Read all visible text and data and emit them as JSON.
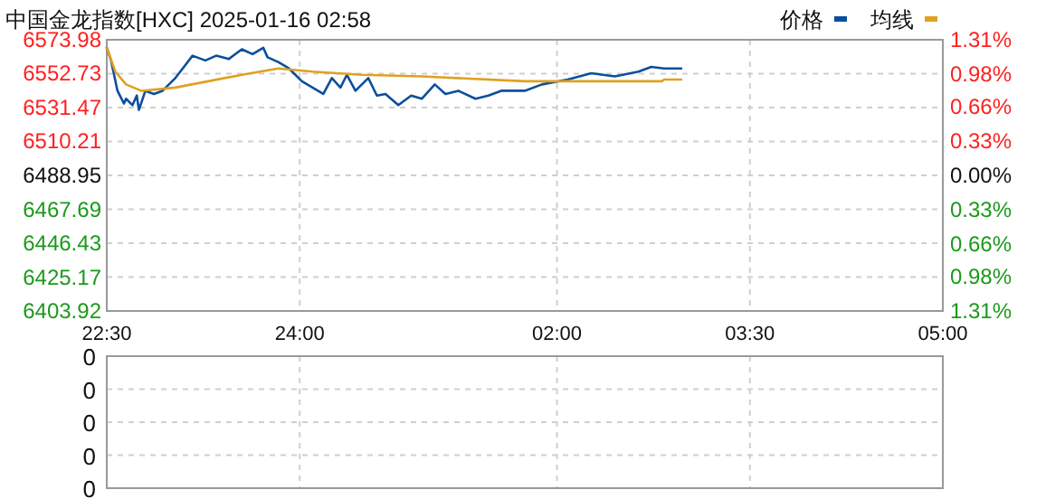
{
  "chart_data": [
    {
      "type": "line",
      "title": "中国金龙指数[HXC]  2025-01-16 02:58",
      "xlim": [
        "2025-01-15T22:30",
        "2025-01-16T05:00"
      ],
      "xticks": [
        {
          "value": "2025-01-15T22:30",
          "label": "22:30"
        },
        {
          "value": "2025-01-16T00:00",
          "label": "24:00"
        },
        {
          "value": "2025-01-16T02:00",
          "label": "02:00"
        },
        {
          "value": "2025-01-16T03:30",
          "label": "03:30"
        },
        {
          "value": "2025-01-16T05:00",
          "label": "05:00"
        }
      ],
      "ylim": [
        6403.92,
        6573.98
      ],
      "yticks": [
        6403.92,
        6425.17,
        6446.43,
        6467.69,
        6488.95,
        6510.21,
        6531.47,
        6552.73,
        6573.98
      ],
      "y2lim": [
        -1.31,
        1.31
      ],
      "y2ticks": [
        {
          "value": -1.31,
          "label": "1.31%"
        },
        {
          "value": -0.98,
          "label": "0.98%"
        },
        {
          "value": -0.66,
          "label": "0.66%"
        },
        {
          "value": -0.33,
          "label": "0.33%"
        },
        {
          "value": 0,
          "label": "0.00%"
        },
        {
          "value": 0.33,
          "label": "0.33%"
        },
        {
          "value": 0.66,
          "label": "0.66%"
        },
        {
          "value": 0.98,
          "label": "0.98%"
        },
        {
          "value": 1.31,
          "label": "1.31%"
        }
      ],
      "grid": true,
      "legend": "top right",
      "line_style": "solid",
      "series": [
        {
          "name": "价格",
          "color": "#0b4f9c",
          "x": [
            "2025-01-15T22:30",
            "2025-01-15T22:32",
            "2025-01-15T22:35",
            "2025-01-15T22:38",
            "2025-01-15T22:39",
            "2025-01-15T22:42",
            "2025-01-15T22:44",
            "2025-01-15T22:45",
            "2025-01-15T22:48",
            "2025-01-15T22:52",
            "2025-01-15T22:56",
            "2025-01-15T23:02",
            "2025-01-15T23:06",
            "2025-01-15T23:10",
            "2025-01-15T23:16",
            "2025-01-15T23:21",
            "2025-01-15T23:27",
            "2025-01-15T23:33",
            "2025-01-15T23:38",
            "2025-01-15T23:43",
            "2025-01-15T23:45",
            "2025-01-15T23:50",
            "2025-01-15T23:55",
            "2025-01-16T00:01",
            "2025-01-16T00:06",
            "2025-01-16T00:11",
            "2025-01-16T00:15",
            "2025-01-16T00:19",
            "2025-01-16T00:22",
            "2025-01-16T00:26",
            "2025-01-16T00:32",
            "2025-01-16T00:36",
            "2025-01-16T00:40",
            "2025-01-16T00:46",
            "2025-01-16T00:52",
            "2025-01-16T00:57",
            "2025-01-16T01:03",
            "2025-01-16T01:08",
            "2025-01-16T01:14",
            "2025-01-16T01:22",
            "2025-01-16T01:28",
            "2025-01-16T01:34",
            "2025-01-16T01:39",
            "2025-01-16T01:45",
            "2025-01-16T01:53",
            "2025-01-16T02:05",
            "2025-01-16T02:16",
            "2025-01-16T02:27",
            "2025-01-16T02:38",
            "2025-01-16T02:44",
            "2025-01-16T02:50",
            "2025-01-16T02:58"
          ],
          "values": [
            6569,
            6561,
            6542,
            6534,
            6537,
            6533,
            6539,
            6530,
            6542,
            6540,
            6542,
            6550,
            6557,
            6564,
            6561,
            6564,
            6562,
            6568,
            6565,
            6569,
            6563,
            6560,
            6556,
            6548,
            6544,
            6540,
            6550,
            6544,
            6552,
            6542,
            6550,
            6539,
            6540,
            6533,
            6539,
            6537,
            6546,
            6540,
            6542,
            6537,
            6539,
            6542,
            6542,
            6542,
            6546,
            6549,
            6553,
            6551,
            6554,
            6557,
            6556,
            6556
          ]
        },
        {
          "name": "均线",
          "color": "#e0a020",
          "x": [
            "2025-01-15T22:30",
            "2025-01-15T22:34",
            "2025-01-15T22:39",
            "2025-01-15T22:46",
            "2025-01-15T23:02",
            "2025-01-15T23:33",
            "2025-01-15T23:50",
            "2025-01-16T00:06",
            "2025-01-16T00:29",
            "2025-01-16T00:57",
            "2025-01-16T01:45",
            "2025-01-16T02:49",
            "2025-01-16T02:50",
            "2025-01-16T02:58"
          ],
          "values": [
            6569,
            6554,
            6546,
            6542,
            6544,
            6552,
            6556,
            6554,
            6552,
            6551,
            6548,
            6548,
            6549,
            6549
          ]
        }
      ]
    },
    {
      "type": "other",
      "annotations": [
        "0",
        "0",
        "0",
        "0",
        "0"
      ]
    }
  ]
}
